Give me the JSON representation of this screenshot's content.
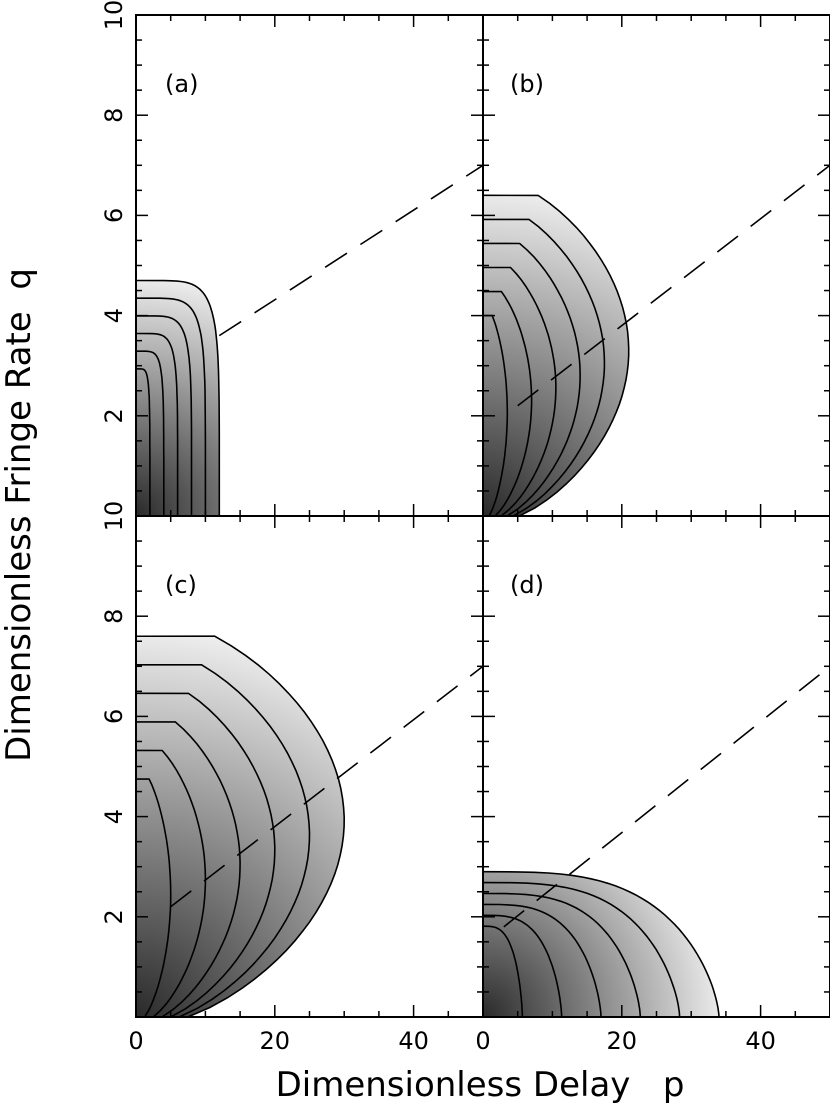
{
  "chart_data": {
    "type": "contour",
    "layout": "2x2 panels, shared axes",
    "xlabel": "Dimensionless Delay   p",
    "ylabel": "Dimensionless Fringe Rate  q",
    "xlim": [
      0,
      50
    ],
    "ylim": [
      0,
      10
    ],
    "xticks": [
      0,
      20,
      40
    ],
    "yticks_top_panels": [
      2,
      4,
      6,
      8,
      10
    ],
    "yticks_bottom_panels": [
      2,
      4,
      6,
      8,
      10
    ],
    "colormap": "grayscale, dark = high",
    "panels": [
      {
        "label": "(a)",
        "outer_contour_qmax": 4.7,
        "outer_contour_pmax": 12,
        "contour_levels": 6,
        "dashed_line": {
          "p": [
            12,
            50
          ],
          "q": [
            3.6,
            7.0
          ]
        }
      },
      {
        "label": "(b)",
        "outer_contour_qmax": 6.4,
        "outer_contour_pmax": 21,
        "contour_levels": 6,
        "dashed_line": {
          "p": [
            5,
            50
          ],
          "q": [
            2.2,
            7.0
          ]
        }
      },
      {
        "label": "(c)",
        "outer_contour_qmax": 7.6,
        "outer_contour_pmax": 30,
        "contour_levels": 6,
        "dashed_line": {
          "p": [
            5,
            50
          ],
          "q": [
            2.2,
            7.0
          ]
        }
      },
      {
        "label": "(d)",
        "outer_contour_qmax": 2.9,
        "outer_contour_pmax": 34,
        "contour_levels": 6,
        "dashed_line": {
          "p": [
            3,
            50
          ],
          "q": [
            1.8,
            7.0
          ]
        }
      }
    ]
  },
  "colors": {
    "dark": "#2a2a2a",
    "light": "#f4f4f4",
    "line": "#000000"
  }
}
